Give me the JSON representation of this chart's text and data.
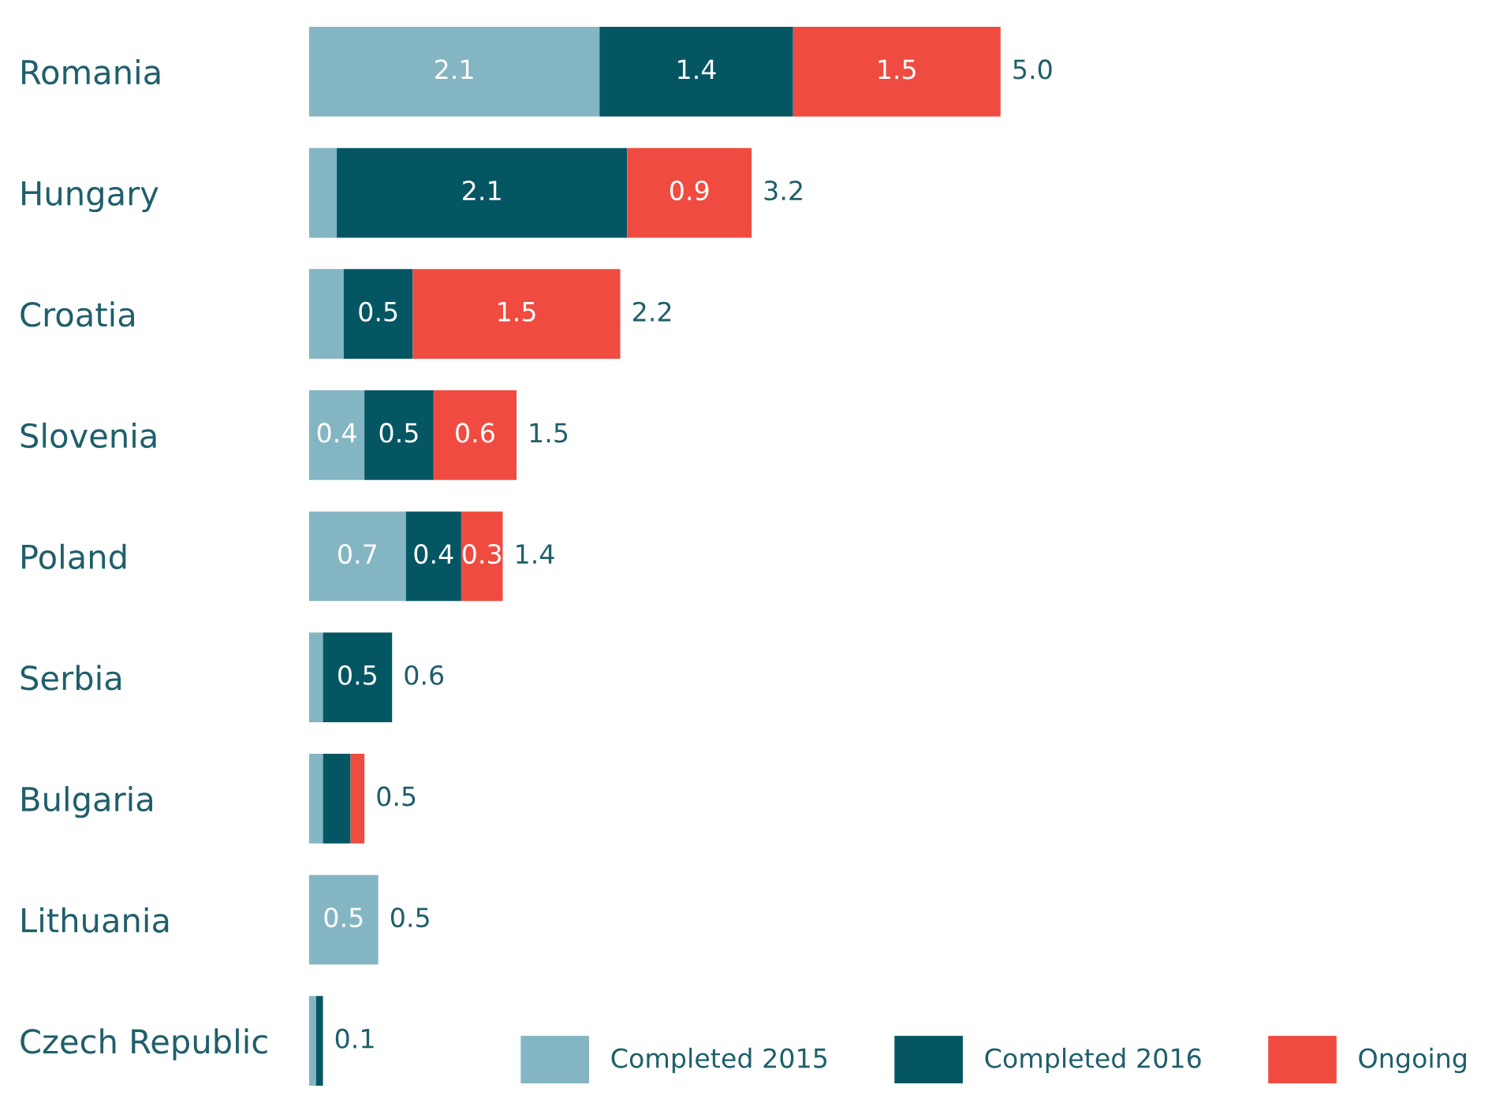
{
  "chart_data": {
    "type": "bar",
    "orientation": "horizontal",
    "stacked": true,
    "categories": [
      "Romania",
      "Hungary",
      "Croatia",
      "Slovenia",
      "Poland",
      "Serbia",
      "Bulgaria",
      "Lithuania",
      "Czech Republic"
    ],
    "series": [
      {
        "name": "Completed 2015",
        "color": "#84b5c2",
        "values": [
          2.1,
          0.2,
          0.25,
          0.4,
          0.7,
          0.1,
          0.1,
          0.5,
          0.05
        ],
        "value_labels": [
          "2.1",
          null,
          null,
          "0.4",
          "0.7",
          null,
          null,
          "0.5",
          null
        ]
      },
      {
        "name": "Completed 2016",
        "color": "#045663",
        "values": [
          1.4,
          2.1,
          0.5,
          0.5,
          0.4,
          0.5,
          0.2,
          0,
          0.05
        ],
        "value_labels": [
          "1.4",
          "2.1",
          "0.5",
          "0.5",
          "0.4",
          "0.5",
          null,
          null,
          null
        ]
      },
      {
        "name": "Ongoing",
        "color": "#f04b40",
        "values": [
          1.5,
          0.9,
          1.5,
          0.6,
          0.3,
          0,
          0.1,
          0,
          0
        ],
        "value_labels": [
          "1.5",
          "0.9",
          "1.5",
          "0.6",
          "0.3",
          null,
          null,
          null,
          null
        ]
      }
    ],
    "totals": [
      "5.0",
      "3.2",
      "2.2",
      "1.5",
      "1.4",
      "0.6",
      "0.5",
      "0.5",
      "0.1"
    ],
    "legend": "bottom right",
    "grid": false,
    "tick_labels": "y"
  }
}
